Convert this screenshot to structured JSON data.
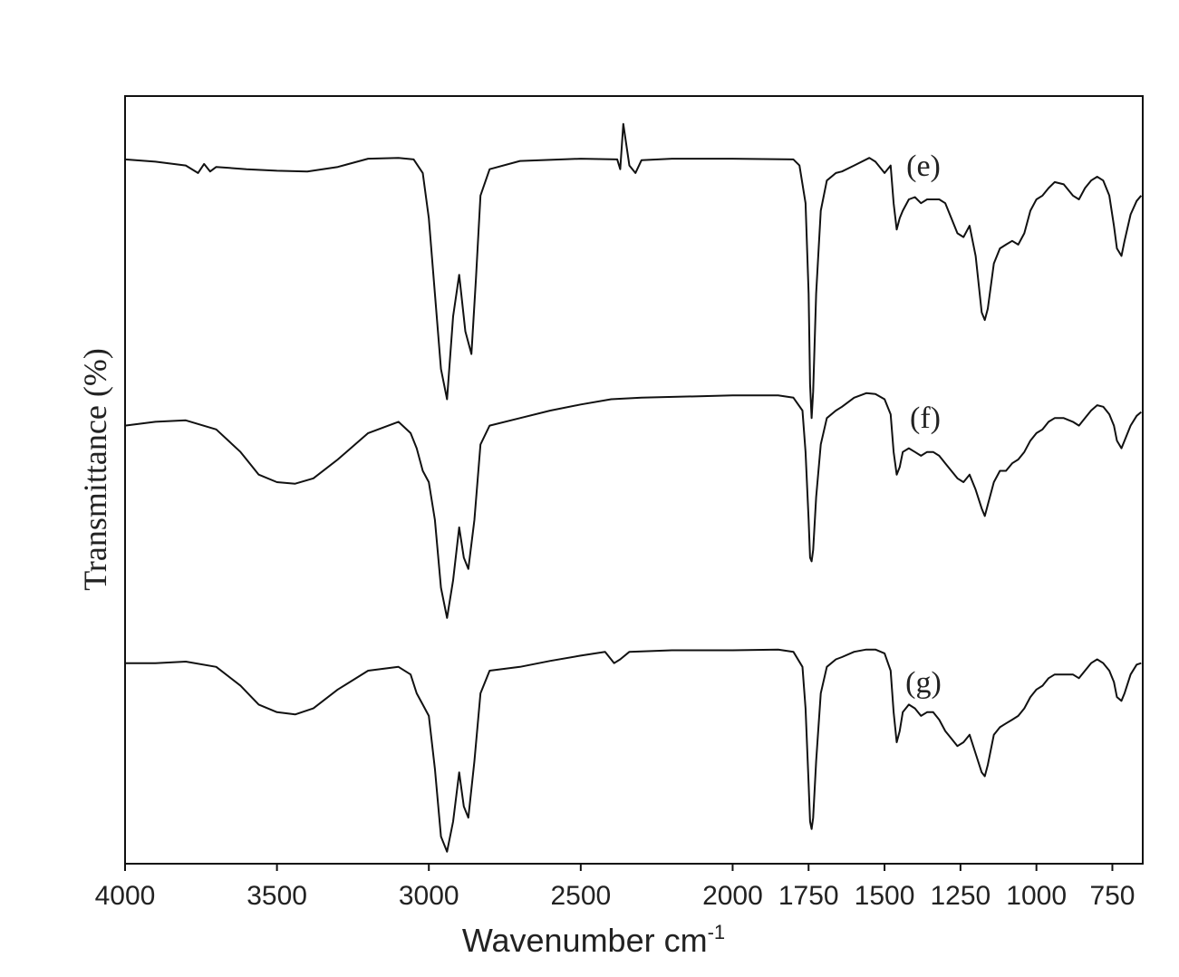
{
  "chart_data": {
    "type": "line",
    "title": "",
    "xlabel": "Wavenumber cm",
    "xlabel_superscript": "-1",
    "ylabel": "Transmittance (%)",
    "xlim": [
      4000,
      650
    ],
    "x_reversed": true,
    "x_ticks": [
      4000,
      3500,
      3000,
      2500,
      2000,
      1750,
      1500,
      1250,
      1000,
      750
    ],
    "x_tick_labels": [
      "4000",
      "3500",
      "3000",
      "2500",
      "2000",
      "1750",
      "1500",
      "1250",
      "1000",
      "750"
    ],
    "y_ticks_shown": false,
    "ylim": [
      0,
      100
    ],
    "grid": false,
    "legend": "none",
    "series": [
      {
        "name": "(e)",
        "points": [
          [
            4000,
            92.8
          ],
          [
            3900,
            92.5
          ],
          [
            3800,
            92.0
          ],
          [
            3760,
            91.0
          ],
          [
            3740,
            92.2
          ],
          [
            3720,
            91.2
          ],
          [
            3700,
            91.8
          ],
          [
            3600,
            91.5
          ],
          [
            3500,
            91.3
          ],
          [
            3400,
            91.2
          ],
          [
            3300,
            91.8
          ],
          [
            3200,
            92.9
          ],
          [
            3100,
            93.0
          ],
          [
            3050,
            92.8
          ],
          [
            3020,
            91.0
          ],
          [
            3000,
            85.0
          ],
          [
            2980,
            75.0
          ],
          [
            2960,
            65.0
          ],
          [
            2940,
            61.0
          ],
          [
            2920,
            72.0
          ],
          [
            2900,
            77.5
          ],
          [
            2880,
            70.0
          ],
          [
            2860,
            67.0
          ],
          [
            2845,
            77.0
          ],
          [
            2830,
            88.0
          ],
          [
            2800,
            91.5
          ],
          [
            2700,
            92.6
          ],
          [
            2500,
            92.9
          ],
          [
            2380,
            92.8
          ],
          [
            2370,
            91.5
          ],
          [
            2360,
            97.5
          ],
          [
            2340,
            92.0
          ],
          [
            2320,
            91.0
          ],
          [
            2300,
            92.7
          ],
          [
            2200,
            92.9
          ],
          [
            2000,
            92.9
          ],
          [
            1800,
            92.8
          ],
          [
            1780,
            92.0
          ],
          [
            1760,
            87.0
          ],
          [
            1750,
            75.0
          ],
          [
            1745,
            63.0
          ],
          [
            1740,
            58.5
          ],
          [
            1735,
            62.0
          ],
          [
            1725,
            75.0
          ],
          [
            1710,
            86.0
          ],
          [
            1690,
            90.0
          ],
          [
            1660,
            91.0
          ],
          [
            1640,
            91.2
          ],
          [
            1600,
            92.0
          ],
          [
            1550,
            93.0
          ],
          [
            1530,
            92.5
          ],
          [
            1500,
            91.0
          ],
          [
            1480,
            92.0
          ],
          [
            1470,
            87.0
          ],
          [
            1460,
            83.5
          ],
          [
            1450,
            85.0
          ],
          [
            1440,
            86.0
          ],
          [
            1420,
            87.5
          ],
          [
            1400,
            87.8
          ],
          [
            1380,
            87.0
          ],
          [
            1360,
            87.5
          ],
          [
            1320,
            87.5
          ],
          [
            1300,
            87.0
          ],
          [
            1280,
            85.0
          ],
          [
            1260,
            83.0
          ],
          [
            1240,
            82.5
          ],
          [
            1220,
            84.0
          ],
          [
            1200,
            80.0
          ],
          [
            1180,
            72.5
          ],
          [
            1170,
            71.5
          ],
          [
            1160,
            73.0
          ],
          [
            1140,
            79.0
          ],
          [
            1120,
            81.0
          ],
          [
            1100,
            81.5
          ],
          [
            1080,
            82.0
          ],
          [
            1060,
            81.5
          ],
          [
            1040,
            83.0
          ],
          [
            1020,
            86.0
          ],
          [
            1000,
            87.5
          ],
          [
            980,
            88.0
          ],
          [
            960,
            89.0
          ],
          [
            940,
            89.8
          ],
          [
            910,
            89.5
          ],
          [
            880,
            88.0
          ],
          [
            860,
            87.5
          ],
          [
            840,
            89.0
          ],
          [
            820,
            90.0
          ],
          [
            800,
            90.5
          ],
          [
            780,
            90.0
          ],
          [
            760,
            88.0
          ],
          [
            745,
            84.0
          ],
          [
            735,
            81.0
          ],
          [
            720,
            80.0
          ],
          [
            710,
            82.0
          ],
          [
            690,
            85.5
          ],
          [
            670,
            87.3
          ],
          [
            655,
            88.0
          ]
        ]
      },
      {
        "name": "(f)",
        "points": [
          [
            4000,
            57.5
          ],
          [
            3900,
            58.0
          ],
          [
            3800,
            58.2
          ],
          [
            3700,
            57.0
          ],
          [
            3620,
            54.0
          ],
          [
            3560,
            51.0
          ],
          [
            3500,
            50.0
          ],
          [
            3440,
            49.8
          ],
          [
            3380,
            50.5
          ],
          [
            3300,
            53.0
          ],
          [
            3200,
            56.5
          ],
          [
            3100,
            58.0
          ],
          [
            3060,
            56.5
          ],
          [
            3040,
            54.5
          ],
          [
            3020,
            51.5
          ],
          [
            3000,
            50.0
          ],
          [
            2980,
            45.0
          ],
          [
            2960,
            36.0
          ],
          [
            2940,
            32.0
          ],
          [
            2920,
            37.0
          ],
          [
            2900,
            44.0
          ],
          [
            2885,
            40.0
          ],
          [
            2870,
            38.5
          ],
          [
            2850,
            45.0
          ],
          [
            2830,
            55.0
          ],
          [
            2800,
            57.5
          ],
          [
            2700,
            58.5
          ],
          [
            2600,
            59.5
          ],
          [
            2500,
            60.3
          ],
          [
            2400,
            61.0
          ],
          [
            2300,
            61.2
          ],
          [
            2000,
            61.5
          ],
          [
            1850,
            61.5
          ],
          [
            1800,
            61.2
          ],
          [
            1770,
            59.5
          ],
          [
            1760,
            54.0
          ],
          [
            1750,
            45.0
          ],
          [
            1745,
            40.0
          ],
          [
            1740,
            39.5
          ],
          [
            1735,
            41.0
          ],
          [
            1725,
            48.0
          ],
          [
            1710,
            55.0
          ],
          [
            1690,
            58.5
          ],
          [
            1660,
            59.5
          ],
          [
            1640,
            60.0
          ],
          [
            1600,
            61.2
          ],
          [
            1560,
            61.8
          ],
          [
            1530,
            61.7
          ],
          [
            1500,
            61.0
          ],
          [
            1480,
            59.0
          ],
          [
            1470,
            54.0
          ],
          [
            1460,
            51.0
          ],
          [
            1450,
            52.0
          ],
          [
            1440,
            54.0
          ],
          [
            1420,
            54.5
          ],
          [
            1400,
            54.0
          ],
          [
            1380,
            53.5
          ],
          [
            1360,
            54.0
          ],
          [
            1340,
            54.0
          ],
          [
            1320,
            53.5
          ],
          [
            1300,
            52.5
          ],
          [
            1280,
            51.5
          ],
          [
            1260,
            50.5
          ],
          [
            1240,
            50.0
          ],
          [
            1220,
            51.0
          ],
          [
            1200,
            49.0
          ],
          [
            1180,
            46.5
          ],
          [
            1170,
            45.5
          ],
          [
            1160,
            47.0
          ],
          [
            1140,
            50.0
          ],
          [
            1120,
            51.5
          ],
          [
            1100,
            51.5
          ],
          [
            1080,
            52.5
          ],
          [
            1060,
            53.0
          ],
          [
            1040,
            54.0
          ],
          [
            1020,
            55.5
          ],
          [
            1000,
            56.5
          ],
          [
            980,
            57.0
          ],
          [
            960,
            58.0
          ],
          [
            940,
            58.5
          ],
          [
            910,
            58.5
          ],
          [
            880,
            58.0
          ],
          [
            860,
            57.5
          ],
          [
            840,
            58.5
          ],
          [
            820,
            59.5
          ],
          [
            800,
            60.2
          ],
          [
            780,
            60.0
          ],
          [
            760,
            59.0
          ],
          [
            745,
            57.5
          ],
          [
            735,
            55.5
          ],
          [
            720,
            54.5
          ],
          [
            710,
            55.5
          ],
          [
            690,
            57.5
          ],
          [
            670,
            58.8
          ],
          [
            655,
            59.3
          ]
        ]
      },
      {
        "name": "(g)",
        "points": [
          [
            4000,
            26.0
          ],
          [
            3900,
            26.0
          ],
          [
            3800,
            26.2
          ],
          [
            3700,
            25.5
          ],
          [
            3620,
            23.0
          ],
          [
            3560,
            20.5
          ],
          [
            3500,
            19.5
          ],
          [
            3440,
            19.2
          ],
          [
            3380,
            20.0
          ],
          [
            3300,
            22.5
          ],
          [
            3200,
            25.0
          ],
          [
            3100,
            25.5
          ],
          [
            3060,
            24.5
          ],
          [
            3040,
            22.0
          ],
          [
            3020,
            20.5
          ],
          [
            3000,
            19.0
          ],
          [
            2980,
            12.0
          ],
          [
            2960,
            3.0
          ],
          [
            2940,
            1.0
          ],
          [
            2920,
            5.0
          ],
          [
            2900,
            11.5
          ],
          [
            2885,
            7.0
          ],
          [
            2870,
            5.5
          ],
          [
            2850,
            13.0
          ],
          [
            2830,
            22.0
          ],
          [
            2800,
            25.0
          ],
          [
            2700,
            25.5
          ],
          [
            2600,
            26.3
          ],
          [
            2500,
            27.0
          ],
          [
            2420,
            27.5
          ],
          [
            2390,
            26.0
          ],
          [
            2370,
            26.5
          ],
          [
            2340,
            27.5
          ],
          [
            2200,
            27.7
          ],
          [
            2000,
            27.7
          ],
          [
            1850,
            27.8
          ],
          [
            1800,
            27.5
          ],
          [
            1770,
            25.5
          ],
          [
            1760,
            20.0
          ],
          [
            1750,
            10.0
          ],
          [
            1745,
            5.0
          ],
          [
            1740,
            4.0
          ],
          [
            1735,
            5.5
          ],
          [
            1725,
            13.0
          ],
          [
            1710,
            22.0
          ],
          [
            1690,
            25.5
          ],
          [
            1660,
            26.5
          ],
          [
            1640,
            26.8
          ],
          [
            1600,
            27.5
          ],
          [
            1560,
            27.8
          ],
          [
            1530,
            27.8
          ],
          [
            1500,
            27.3
          ],
          [
            1480,
            25.0
          ],
          [
            1470,
            19.5
          ],
          [
            1460,
            15.5
          ],
          [
            1450,
            17.0
          ],
          [
            1440,
            19.5
          ],
          [
            1420,
            20.5
          ],
          [
            1400,
            20.0
          ],
          [
            1380,
            19.0
          ],
          [
            1360,
            19.5
          ],
          [
            1340,
            19.5
          ],
          [
            1320,
            18.5
          ],
          [
            1300,
            17.0
          ],
          [
            1280,
            16.0
          ],
          [
            1260,
            15.0
          ],
          [
            1240,
            15.5
          ],
          [
            1220,
            16.5
          ],
          [
            1200,
            14.0
          ],
          [
            1180,
            11.5
          ],
          [
            1170,
            11.0
          ],
          [
            1160,
            12.5
          ],
          [
            1140,
            16.5
          ],
          [
            1120,
            17.5
          ],
          [
            1100,
            18.0
          ],
          [
            1080,
            18.5
          ],
          [
            1060,
            19.0
          ],
          [
            1040,
            20.0
          ],
          [
            1020,
            21.5
          ],
          [
            1000,
            22.5
          ],
          [
            980,
            23.0
          ],
          [
            960,
            24.0
          ],
          [
            940,
            24.5
          ],
          [
            910,
            24.5
          ],
          [
            880,
            24.5
          ],
          [
            860,
            24.0
          ],
          [
            840,
            25.0
          ],
          [
            820,
            26.0
          ],
          [
            800,
            26.5
          ],
          [
            780,
            26.0
          ],
          [
            760,
            25.0
          ],
          [
            745,
            23.5
          ],
          [
            735,
            21.5
          ],
          [
            720,
            21.0
          ],
          [
            710,
            22.0
          ],
          [
            690,
            24.5
          ],
          [
            670,
            25.8
          ],
          [
            655,
            26.0
          ]
        ]
      }
    ]
  }
}
